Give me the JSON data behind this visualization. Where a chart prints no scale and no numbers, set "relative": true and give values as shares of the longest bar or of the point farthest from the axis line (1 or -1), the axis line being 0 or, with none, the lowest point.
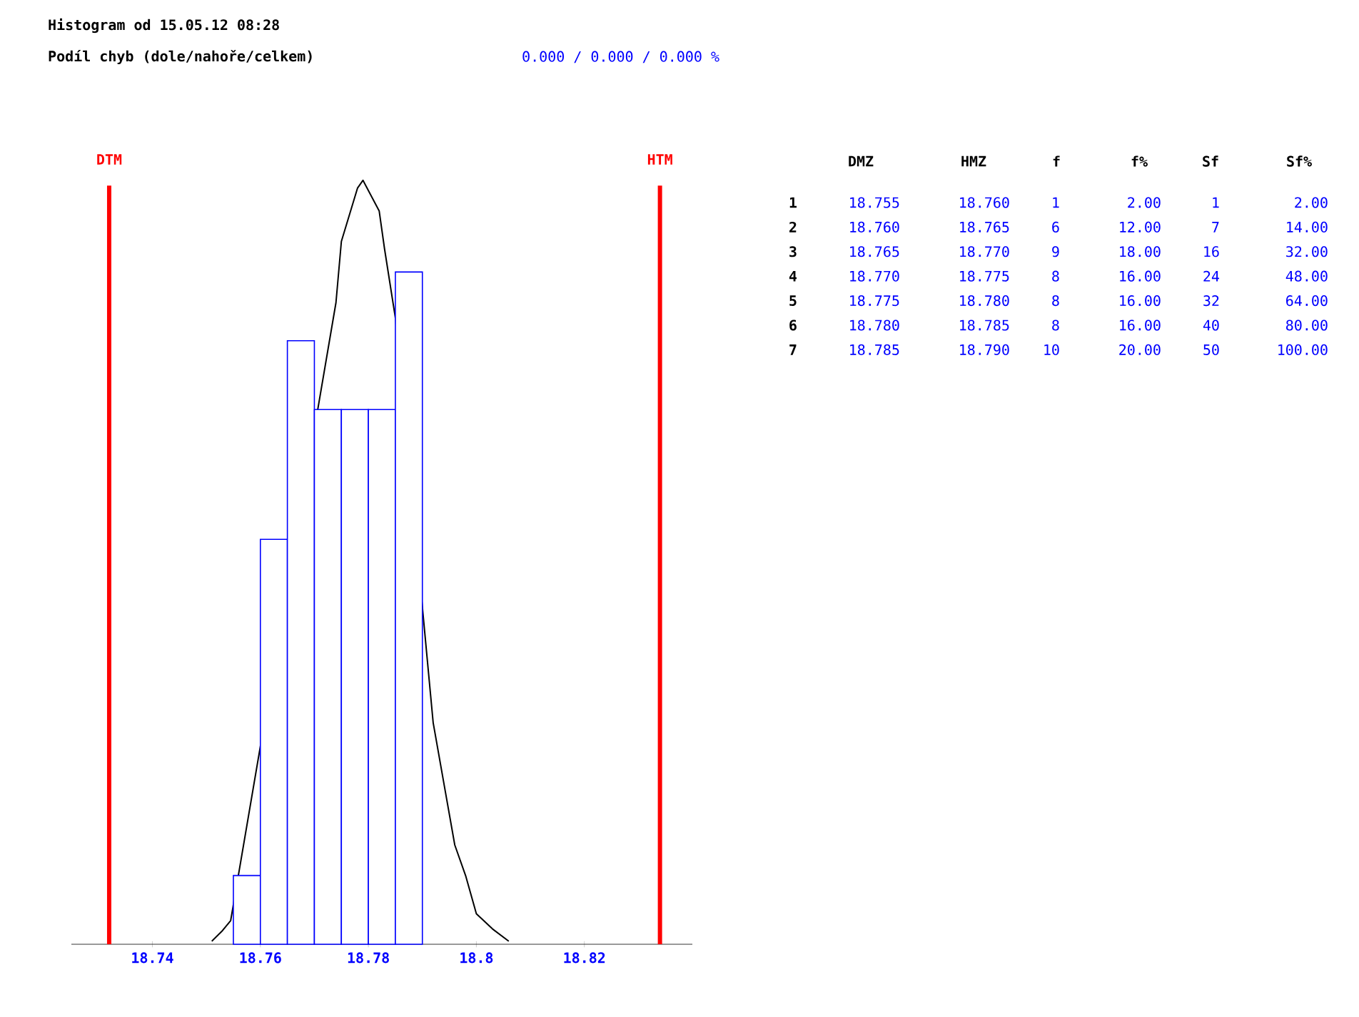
{
  "chart_data": {
    "type": "histogram",
    "title": "Histogram od 15.05.12 08:28",
    "subtitle": "Podíl chyb (dole/nahoře/celkem)",
    "bins": [
      18.755,
      18.76,
      18.765,
      18.77,
      18.775,
      18.78,
      18.785,
      18.79
    ],
    "series": [
      {
        "color": "#0000ff",
        "values": [
          0.09,
          0.53,
          0.79,
          0.7,
          0.7,
          0.7,
          0.88
        ]
      },
      {
        "type": "line",
        "color": "#000000",
        "x": [
          18.751,
          18.753,
          18.7545,
          18.774,
          18.775,
          18.778,
          18.779,
          18.782,
          18.783,
          18.785,
          18.792,
          18.794,
          18.796,
          18.798,
          18.8,
          18.803,
          18.806
        ],
        "values": [
          0.004,
          0.018,
          0.031,
          0.84,
          0.92,
          0.99,
          1,
          0.96,
          0.91,
          0.82,
          0.29,
          0.21,
          0.13,
          0.09,
          0.04,
          0.02,
          0.004
        ]
      }
    ],
    "relative": true,
    "xlim": [
      18.725,
      18.84
    ],
    "xticks": [
      18.74,
      18.76,
      18.78,
      18.8,
      18.82
    ],
    "ref_lines": [
      {
        "axis": "x",
        "value": 18.732,
        "label": "DTM",
        "color": "#ff0000"
      },
      {
        "axis": "x",
        "value": 18.834,
        "label": "HTM",
        "color": "#ff0000"
      }
    ],
    "annotations": [
      "0.000 / 0.000 / 0.000 %",
      "DMZ",
      "HMZ",
      "f",
      "f%",
      "Sf",
      "Sf%",
      "1",
      "18.755",
      "18.760",
      "1",
      "2.00",
      "1",
      "2.00",
      "2",
      "18.760",
      "18.765",
      "6",
      "12.00",
      "7",
      "14.00",
      "3",
      "18.765",
      "18.770",
      "9",
      "18.00",
      "16",
      "32.00",
      "4",
      "18.770",
      "18.775",
      "8",
      "16.00",
      "24",
      "48.00",
      "5",
      "18.775",
      "18.780",
      "8",
      "16.00",
      "32",
      "64.00",
      "6",
      "18.780",
      "18.785",
      "8",
      "16.00",
      "40",
      "80.00",
      "7",
      "18.785",
      "18.790",
      "10",
      "20.00",
      "50",
      "100.00"
    ]
  }
}
